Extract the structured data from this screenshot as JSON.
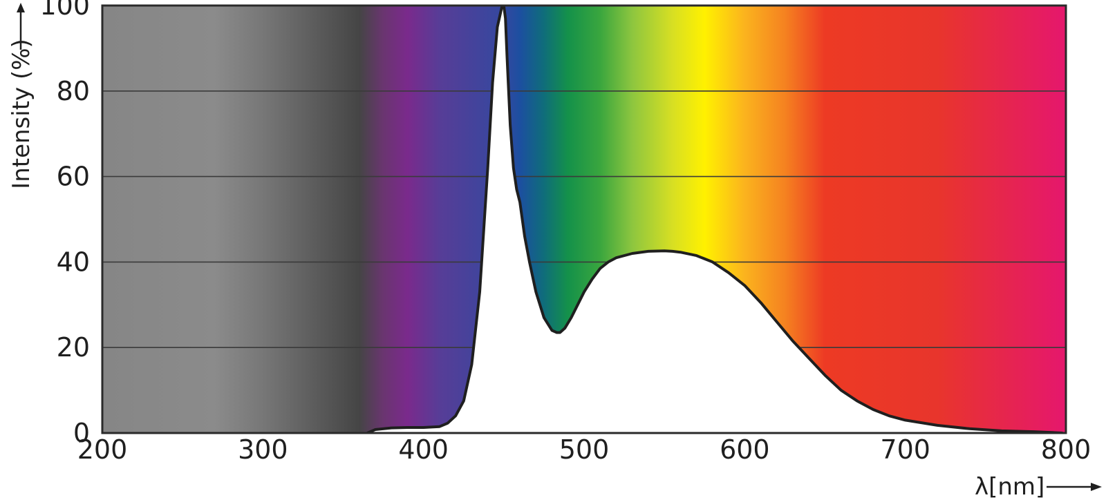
{
  "chart_data": {
    "type": "area",
    "title": "",
    "xlabel": "λ[nm]",
    "ylabel": "Intensity (%)",
    "xlim": [
      200,
      800
    ],
    "ylim": [
      0,
      100
    ],
    "x_ticks": [
      200,
      300,
      400,
      500,
      600,
      700,
      800
    ],
    "y_ticks": [
      0,
      20,
      40,
      60,
      80,
      100
    ],
    "grid": "horizontal",
    "background": "visible light spectrum gradient (grey below 370 nm)",
    "series": [
      {
        "x": [
          365,
          370,
          380,
          390,
          400,
          410,
          415,
          420,
          425,
          430,
          435,
          440,
          443,
          446,
          449,
          450,
          451,
          452,
          454,
          456,
          458,
          460,
          463,
          466,
          470,
          475,
          480,
          483,
          485,
          488,
          492,
          496,
          500,
          505,
          510,
          515,
          520,
          530,
          540,
          550,
          555,
          560,
          570,
          580,
          590,
          600,
          610,
          620,
          630,
          640,
          650,
          660,
          670,
          680,
          690,
          700,
          720,
          740,
          760,
          780,
          798
        ],
        "y": [
          0,
          0.8,
          1.2,
          1.3,
          1.3,
          1.5,
          2.3,
          4,
          7.5,
          16,
          33,
          62,
          82,
          95,
          100,
          100,
          97,
          88,
          72,
          62,
          57,
          54,
          46,
          40,
          33,
          27,
          24,
          23.5,
          23.5,
          24.5,
          27,
          30,
          33,
          36,
          38.5,
          40,
          41,
          42,
          42.5,
          42.6,
          42.5,
          42.3,
          41.5,
          40,
          37.5,
          34.5,
          30.5,
          26,
          21.5,
          17.5,
          13.5,
          10,
          7.5,
          5.5,
          4,
          3,
          1.8,
          1,
          0.5,
          0.3,
          0
        ]
      }
    ],
    "colors": {
      "curve_fill": "#ffffff",
      "curve_line": "#1f1f1f",
      "grid_line": "#3a3a3a"
    },
    "spectrum_stops": [
      {
        "x": 200,
        "color": "#868686"
      },
      {
        "x": 270,
        "color": "#8b8b8b"
      },
      {
        "x": 300,
        "color": "#777777"
      },
      {
        "x": 330,
        "color": "#5e5e5e"
      },
      {
        "x": 360,
        "color": "#454545"
      },
      {
        "x": 375,
        "color": "#6a3570"
      },
      {
        "x": 390,
        "color": "#7a2a8c"
      },
      {
        "x": 410,
        "color": "#573d97"
      },
      {
        "x": 450,
        "color": "#34489f"
      },
      {
        "x": 460,
        "color": "#1c4fa0"
      },
      {
        "x": 475,
        "color": "#0f6d7a"
      },
      {
        "x": 490,
        "color": "#14914a"
      },
      {
        "x": 510,
        "color": "#3aa63e"
      },
      {
        "x": 530,
        "color": "#8dc63f"
      },
      {
        "x": 555,
        "color": "#d7df23"
      },
      {
        "x": 575,
        "color": "#fff100"
      },
      {
        "x": 600,
        "color": "#fbb31e"
      },
      {
        "x": 625,
        "color": "#f58220"
      },
      {
        "x": 650,
        "color": "#ed3a24"
      },
      {
        "x": 720,
        "color": "#e8352c"
      },
      {
        "x": 800,
        "color": "#e5176d"
      }
    ]
  }
}
